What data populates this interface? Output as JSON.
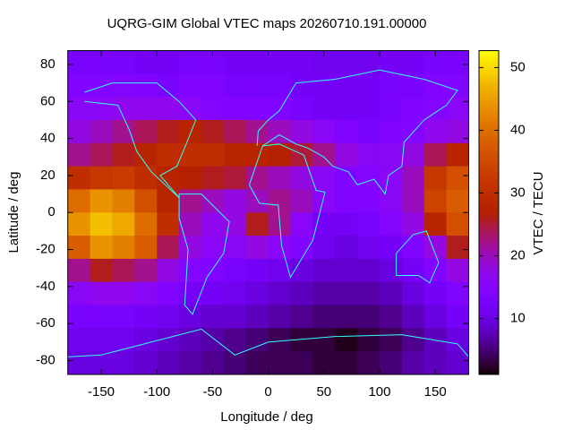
{
  "chart_data": {
    "type": "heatmap",
    "title": "UQRG-GIM Global VTEC maps 20260710.191.00000",
    "x_label": "Longitude / deg",
    "y_label": "Latitude / deg",
    "colorbar_label": "VTEC / TECU",
    "palette": "rgbformulae 7,5,15",
    "x": [
      -170,
      -150,
      -130,
      -110,
      -90,
      -70,
      -50,
      -30,
      -10,
      10,
      30,
      50,
      70,
      90,
      110,
      130,
      150,
      170
    ],
    "y": [
      81.25,
      68.75,
      56.25,
      43.75,
      31.25,
      18.75,
      6.25,
      -6.25,
      -18.75,
      -31.25,
      -43.75,
      -56.25,
      -68.75,
      -81.25
    ],
    "values": [
      [
        13,
        13,
        13,
        12,
        12,
        13,
        13,
        12,
        12,
        12,
        12,
        11,
        11,
        11,
        12,
        12,
        13,
        13
      ],
      [
        14,
        14,
        15,
        14,
        13,
        14,
        14,
        13,
        13,
        13,
        12,
        12,
        12,
        12,
        13,
        13,
        14,
        14
      ],
      [
        16,
        16,
        17,
        17,
        17,
        16,
        15,
        14,
        14,
        14,
        13,
        12,
        12,
        12,
        13,
        14,
        15,
        16
      ],
      [
        18,
        20,
        22,
        24,
        26,
        28,
        26,
        24,
        22,
        20,
        18,
        16,
        14,
        13,
        14,
        15,
        17,
        18
      ],
      [
        22,
        24,
        26,
        28,
        30,
        30,
        30,
        28,
        28,
        27,
        25,
        22,
        18,
        16,
        16,
        18,
        24,
        28
      ],
      [
        30,
        32,
        33,
        30,
        28,
        27,
        26,
        25,
        22,
        20,
        18,
        16,
        14,
        15,
        16,
        20,
        32,
        36
      ],
      [
        40,
        44,
        42,
        36,
        28,
        22,
        20,
        18,
        20,
        22,
        20,
        16,
        14,
        14,
        16,
        20,
        34,
        38
      ],
      [
        44,
        48,
        46,
        40,
        30,
        20,
        17,
        18,
        26,
        22,
        16,
        12,
        12,
        13,
        15,
        18,
        28,
        36
      ],
      [
        38,
        44,
        42,
        38,
        24,
        18,
        16,
        16,
        18,
        16,
        14,
        11,
        10,
        11,
        12,
        14,
        18,
        26
      ],
      [
        22,
        26,
        24,
        22,
        18,
        15,
        14,
        13,
        12,
        11,
        10,
        9,
        9,
        9,
        10,
        12,
        14,
        18
      ],
      [
        16,
        17,
        17,
        16,
        14,
        12,
        12,
        11,
        10,
        9,
        8,
        7,
        7,
        7,
        8,
        10,
        12,
        14
      ],
      [
        13,
        13,
        13,
        12,
        11,
        10,
        9,
        9,
        8,
        7,
        6,
        5,
        5,
        5,
        6,
        8,
        10,
        12
      ],
      [
        11,
        11,
        11,
        10,
        9,
        8,
        7,
        6,
        5,
        4,
        3,
        3,
        2,
        3,
        4,
        6,
        8,
        10
      ],
      [
        10,
        10,
        10,
        9,
        8,
        7,
        6,
        5,
        4,
        4,
        4,
        3,
        3,
        4,
        5,
        7,
        8,
        9
      ]
    ],
    "xlim": [
      -180,
      180
    ],
    "xticks": [
      -150,
      -100,
      -50,
      0,
      50,
      100,
      150
    ],
    "ylim": [
      -87.5,
      87.5
    ],
    "yticks": [
      -80,
      -60,
      -40,
      -20,
      0,
      20,
      40,
      60,
      80
    ],
    "clim": [
      1.1,
      52.7
    ],
    "cticks": [
      10,
      20,
      30,
      40,
      50
    ]
  }
}
